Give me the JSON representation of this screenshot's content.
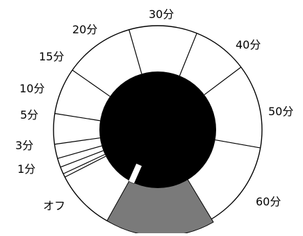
{
  "timer_dial": {
    "labels": [
      "オフ",
      "1分",
      "3分",
      "5分",
      "10分",
      "15分",
      "20分",
      "30分",
      "40分",
      "50分",
      "60分"
    ],
    "colors": {
      "background": "#ffffff",
      "ring_fill": "#ffffff",
      "ring_stroke": "#000000",
      "center_knob": "#000000",
      "base_segment": "#7a7a7a",
      "pointer_fill": "#ffffff",
      "label_text": "#000000"
    }
  }
}
